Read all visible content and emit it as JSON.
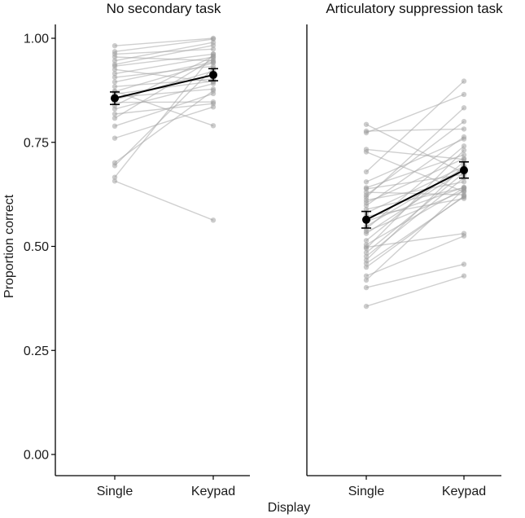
{
  "chart_data": {
    "type": "line",
    "xlabel": "Display",
    "ylabel": "Proportion correct",
    "ylim": [
      0,
      1
    ],
    "yticks": [
      "0.00",
      "0.25",
      "0.50",
      "0.75",
      "1.00"
    ],
    "categories": [
      "Single",
      "Keypad"
    ],
    "facets": [
      {
        "title": "No secondary task",
        "mean": {
          "values": [
            0.856,
            0.912
          ],
          "error_low": [
            0.841,
            0.898
          ],
          "error_high": [
            0.871,
            0.927
          ]
        },
        "subjects": [
          [
            0.982,
            1.0
          ],
          [
            0.968,
            0.998
          ],
          [
            0.962,
            0.974
          ],
          [
            0.955,
            0.946
          ],
          [
            0.946,
            0.99
          ],
          [
            0.937,
            0.983
          ],
          [
            0.933,
            0.962
          ],
          [
            0.925,
            0.895
          ],
          [
            0.915,
            0.955
          ],
          [
            0.906,
            0.933
          ],
          [
            0.895,
            0.943
          ],
          [
            0.884,
            0.902
          ],
          [
            0.872,
            0.941
          ],
          [
            0.866,
            0.897
          ],
          [
            0.858,
            0.878
          ],
          [
            0.852,
            0.921
          ],
          [
            0.846,
            0.847
          ],
          [
            0.838,
            0.957
          ],
          [
            0.83,
            0.891
          ],
          [
            0.818,
            0.843
          ],
          [
            0.808,
            0.951
          ],
          [
            0.789,
            0.867
          ],
          [
            0.76,
            0.835
          ],
          [
            0.701,
            0.874
          ],
          [
            0.694,
            0.928
          ],
          [
            0.666,
            0.962
          ],
          [
            0.657,
            0.563
          ],
          [
            0.873,
            0.79
          ]
        ]
      },
      {
        "title": "Articulatory suppression task",
        "mean": {
          "values": [
            0.564,
            0.683
          ],
          "error_low": [
            0.544,
            0.664
          ],
          "error_high": [
            0.584,
            0.703
          ]
        },
        "subjects": [
          [
            0.793,
            0.676
          ],
          [
            0.777,
            0.782
          ],
          [
            0.773,
            0.865
          ],
          [
            0.733,
            0.709
          ],
          [
            0.727,
            0.631
          ],
          [
            0.679,
            0.897
          ],
          [
            0.655,
            0.758
          ],
          [
            0.641,
            0.72
          ],
          [
            0.638,
            0.673
          ],
          [
            0.623,
            0.8
          ],
          [
            0.611,
            0.655
          ],
          [
            0.605,
            0.711
          ],
          [
            0.598,
            0.763
          ],
          [
            0.589,
            0.641
          ],
          [
            0.58,
            0.692
          ],
          [
            0.572,
            0.615
          ],
          [
            0.56,
            0.642
          ],
          [
            0.548,
            0.689
          ],
          [
            0.536,
            0.633
          ],
          [
            0.531,
            0.684
          ],
          [
            0.514,
            0.703
          ],
          [
            0.504,
            0.64
          ],
          [
            0.495,
            0.731
          ],
          [
            0.485,
            0.677
          ],
          [
            0.476,
            0.665
          ],
          [
            0.467,
            0.693
          ],
          [
            0.459,
            0.619
          ],
          [
            0.45,
            0.621
          ],
          [
            0.429,
            0.525
          ],
          [
            0.419,
            0.637
          ],
          [
            0.401,
            0.457
          ],
          [
            0.356,
            0.429
          ],
          [
            0.498,
            0.531
          ],
          [
            0.542,
            0.741
          ],
          [
            0.618,
            0.833
          ],
          [
            0.63,
            0.624
          ]
        ]
      }
    ]
  }
}
